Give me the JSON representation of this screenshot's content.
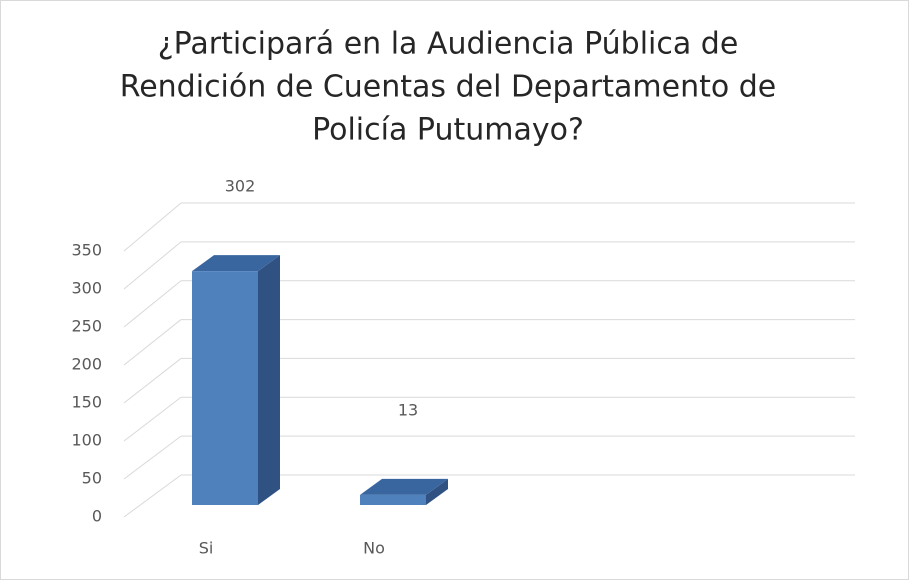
{
  "chart_data": {
    "type": "bar3d",
    "title": [
      "¿Participará en la Audiencia Pública de",
      "Rendición de Cuentas del Departamento de",
      "Policía Putumayo?"
    ],
    "categories": [
      "Si",
      "No"
    ],
    "values": [
      302,
      13
    ],
    "color": "#4f81bd",
    "ylim": [
      0,
      350
    ],
    "yticks": [
      0,
      50,
      100,
      150,
      200,
      250,
      300,
      350
    ],
    "grid": true
  }
}
